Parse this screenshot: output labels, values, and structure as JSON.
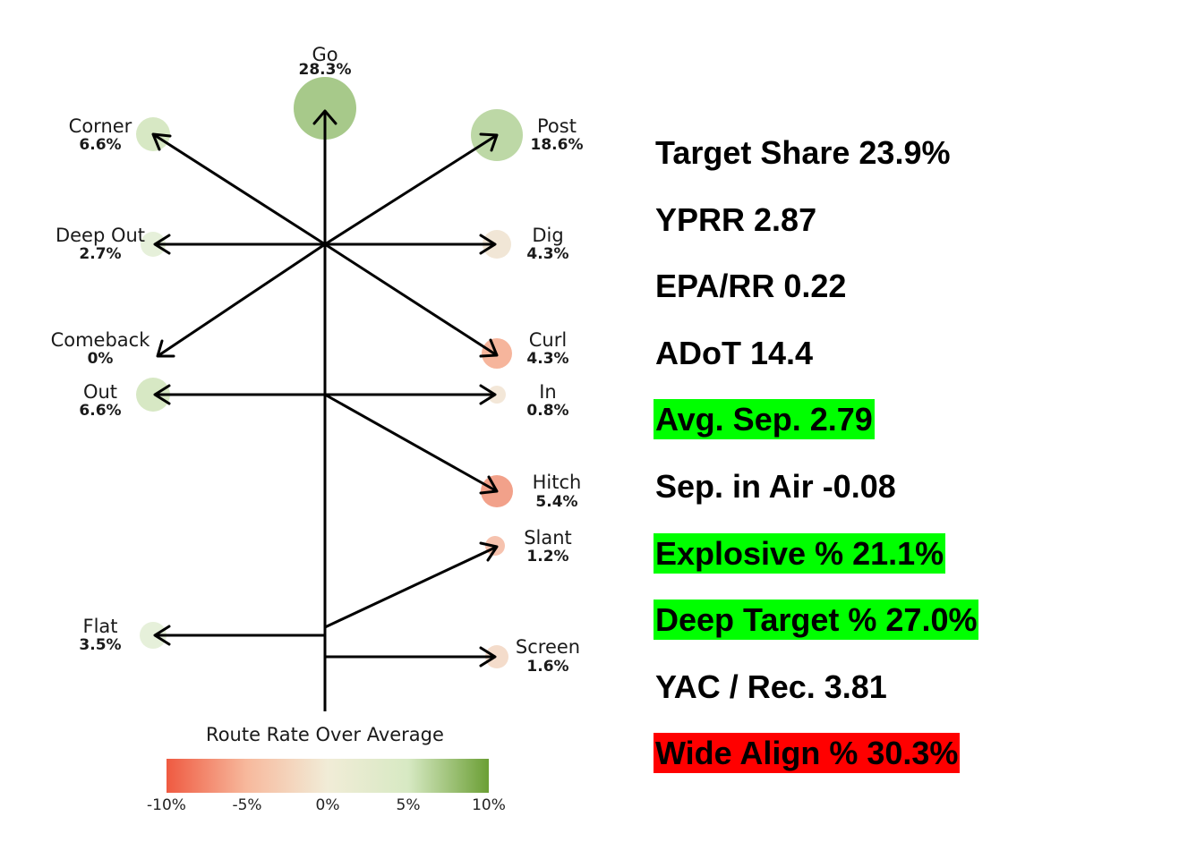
{
  "routes": [
    {
      "key": "go",
      "name": "Go",
      "pct": "28.3%",
      "color": "#a7c98a"
    },
    {
      "key": "corner",
      "name": "Corner",
      "pct": "6.6%",
      "color": "#d7e8c4"
    },
    {
      "key": "post",
      "name": "Post",
      "pct": "18.6%",
      "color": "#bdd8a6"
    },
    {
      "key": "deep_out",
      "name": "Deep Out",
      "pct": "2.7%",
      "color": "#e6f0da"
    },
    {
      "key": "dig",
      "name": "Dig",
      "pct": "4.3%",
      "color": "#f1e6d6"
    },
    {
      "key": "comeback",
      "name": "Comeback",
      "pct": "0%",
      "color": "#ffffff"
    },
    {
      "key": "curl",
      "name": "Curl",
      "pct": "4.3%",
      "color": "#f6b59c"
    },
    {
      "key": "out",
      "name": "Out",
      "pct": "6.6%",
      "color": "#d7e8c4"
    },
    {
      "key": "in",
      "name": "In",
      "pct": "0.8%",
      "color": "#f3e7d8"
    },
    {
      "key": "hitch",
      "name": "Hitch",
      "pct": "5.4%",
      "color": "#f2a18a"
    },
    {
      "key": "slant",
      "name": "Slant",
      "pct": "1.2%",
      "color": "#f6c2ae"
    },
    {
      "key": "flat",
      "name": "Flat",
      "pct": "3.5%",
      "color": "#e6f0da"
    },
    {
      "key": "screen",
      "name": "Screen",
      "pct": "1.6%",
      "color": "#f4dccb"
    }
  ],
  "legend": {
    "title": "Route Rate Over Average",
    "ticks": [
      "-10%",
      "-5%",
      "0%",
      "5%",
      "10%"
    ],
    "colors": [
      "#ef5a41",
      "#f7b99d",
      "#f1ecd7",
      "#d7e9c3",
      "#6b9f35"
    ]
  },
  "stats": [
    {
      "label": "Target Share 23.9%",
      "highlight": "none"
    },
    {
      "label": "YPRR 2.87",
      "highlight": "none"
    },
    {
      "label": "EPA/RR 0.22",
      "highlight": "none"
    },
    {
      "label": "ADoT 14.4",
      "highlight": "none"
    },
    {
      "label": "Avg. Sep. 2.79",
      "highlight": "#00ff00"
    },
    {
      "label": "Sep. in Air -0.08",
      "highlight": "none"
    },
    {
      "label": "Explosive % 21.1%",
      "highlight": "#00ff00"
    },
    {
      "label": "Deep Target % 27.0%",
      "highlight": "#00ff00"
    },
    {
      "label": "YAC / Rec. 3.81",
      "highlight": "none"
    },
    {
      "label": "Wide Align % 30.3%",
      "highlight": "#ff0000"
    }
  ]
}
